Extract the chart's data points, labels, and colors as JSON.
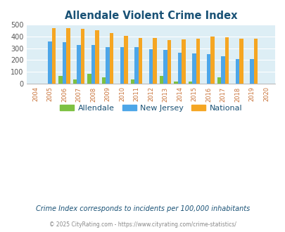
{
  "title": "Allendale Violent Crime Index",
  "years": [
    2004,
    2005,
    2006,
    2007,
    2008,
    2009,
    2010,
    2011,
    2012,
    2013,
    2014,
    2015,
    2016,
    2017,
    2018,
    2019,
    2020
  ],
  "allendale": [
    0,
    0,
    62,
    33,
    80,
    50,
    0,
    33,
    0,
    62,
    15,
    15,
    0,
    50,
    0,
    0,
    0
  ],
  "new_jersey": [
    0,
    355,
    350,
    328,
    329,
    312,
    309,
    308,
    293,
    288,
    262,
    256,
    247,
    231,
    210,
    208,
    0
  ],
  "national": [
    0,
    469,
    473,
    467,
    455,
    432,
    405,
    387,
    387,
    367,
    376,
    383,
    398,
    394,
    379,
    379,
    0
  ],
  "color_allendale": "#7dc142",
  "color_nj": "#4da6e8",
  "color_national": "#f5a623",
  "bg_color": "#ddeef5",
  "ylabel_max": 500,
  "yticks": [
    0,
    100,
    200,
    300,
    400,
    500
  ],
  "footnote1": "Crime Index corresponds to incidents per 100,000 inhabitants",
  "footnote2": "© 2025 CityRating.com - https://www.cityrating.com/crime-statistics/",
  "title_color": "#1a5276",
  "label_color": "#c87137",
  "footnote1_color": "#1a5276",
  "footnote2_color": "#888888"
}
